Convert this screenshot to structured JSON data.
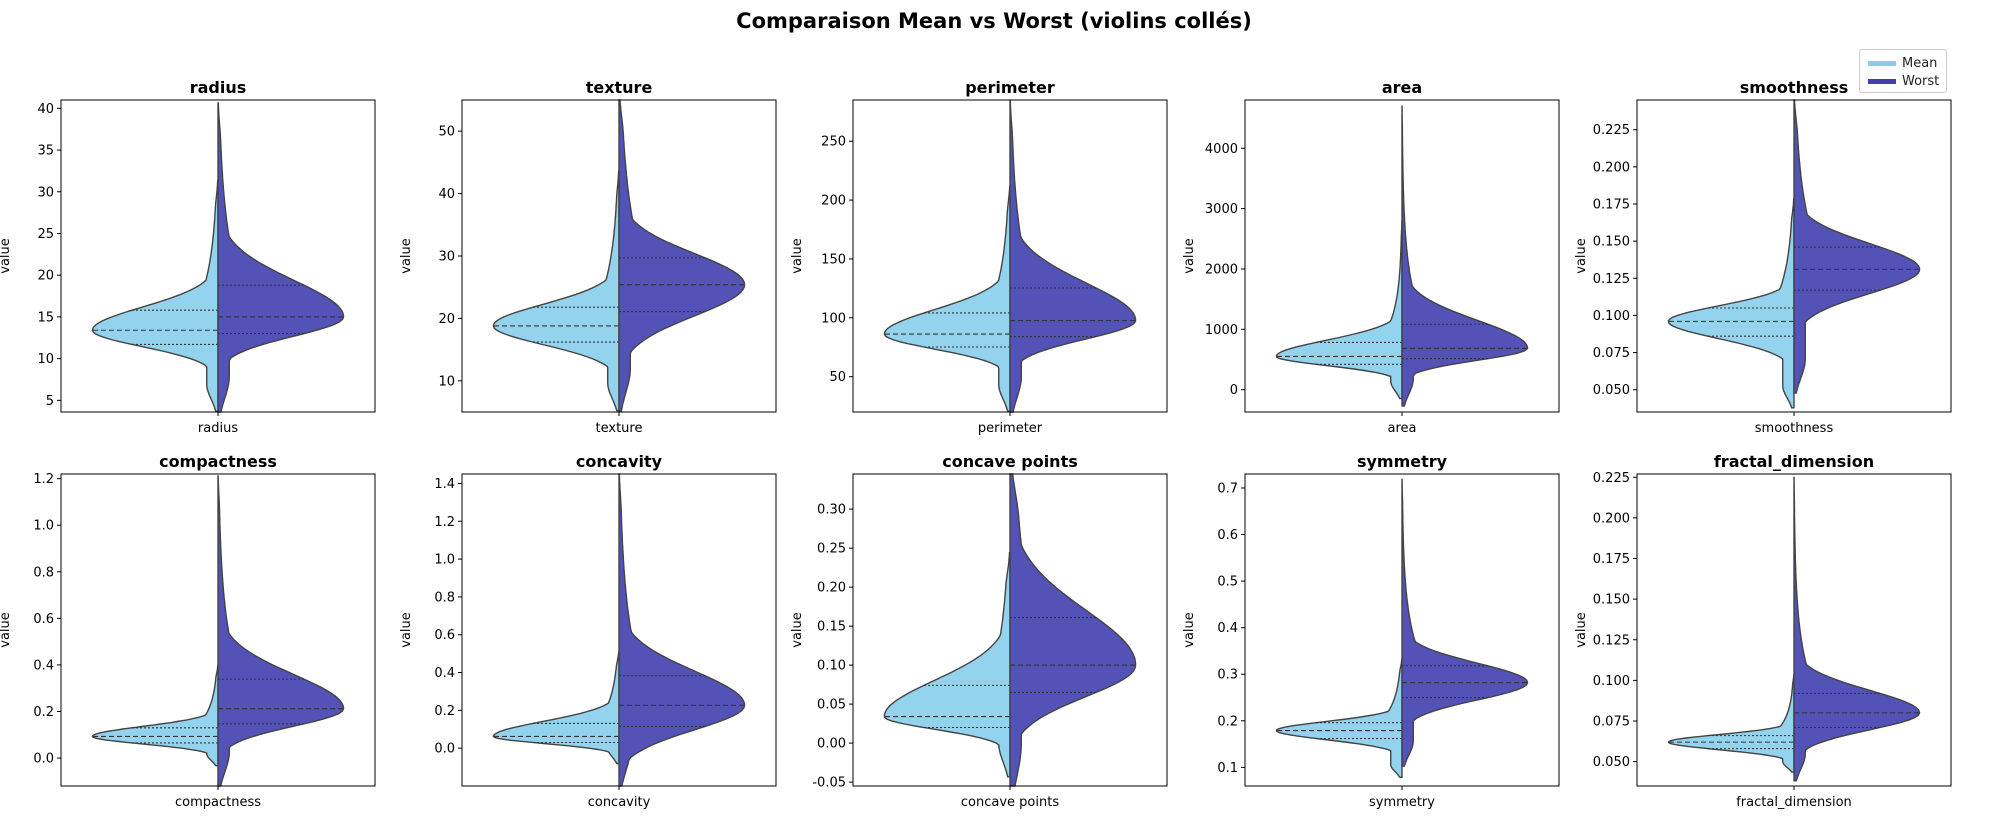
{
  "colors": {
    "mean": "#87CEEB",
    "worst": "#3F3FAF",
    "edge": "#444444",
    "quartile": "#333333"
  },
  "legend": {
    "mean_label": "Mean",
    "worst_label": "Worst"
  },
  "chart_data": {
    "type": "violin",
    "title": "Comparaison Mean vs Worst (violins collés)",
    "ylabel": "value",
    "legend_placement": "top-right",
    "grid": false,
    "panels": [
      {
        "name": "radius",
        "ylim": [
          3.6,
          41
        ],
        "yticks": [
          5,
          10,
          15,
          20,
          25,
          30,
          35,
          40
        ],
        "mean": {
          "range": [
            6.98,
            28.1
          ],
          "quartiles": [
            11.7,
            13.4,
            15.8
          ]
        },
        "worst": {
          "range": [
            7.9,
            36.0
          ],
          "quartiles": [
            13.0,
            15.0,
            18.8
          ]
        }
      },
      {
        "name": "texture",
        "ylim": [
          5,
          55
        ],
        "yticks": [
          10,
          20,
          30,
          40,
          50
        ],
        "mean": {
          "range": [
            9.7,
            39.3
          ],
          "quartiles": [
            16.2,
            18.8,
            21.8
          ]
        },
        "worst": {
          "range": [
            12.0,
            49.5
          ],
          "quartiles": [
            21.1,
            25.4,
            29.7
          ]
        }
      },
      {
        "name": "perimeter",
        "ylim": [
          20,
          285
        ],
        "yticks": [
          50,
          100,
          150,
          200,
          250
        ],
        "mean": {
          "range": [
            43.8,
            188.5
          ],
          "quartiles": [
            75.2,
            86.2,
            104.1
          ]
        },
        "worst": {
          "range": [
            50.4,
            251.2
          ],
          "quartiles": [
            84.1,
            97.7,
            125.4
          ]
        }
      },
      {
        "name": "area",
        "ylim": [
          -370,
          4800
        ],
        "yticks": [
          0,
          1000,
          2000,
          3000,
          4000
        ],
        "mean": {
          "range": [
            143,
            2501
          ],
          "quartiles": [
            420,
            551,
            783
          ]
        },
        "worst": {
          "range": [
            185,
            4254
          ],
          "quartiles": [
            515,
            686,
            1084
          ]
        }
      },
      {
        "name": "smoothness",
        "ylim": [
          0.035,
          0.245
        ],
        "yticks": [
          0.05,
          0.075,
          0.1,
          0.125,
          0.15,
          0.175,
          0.2,
          0.225
        ],
        "ytick_labels": [
          "0.050",
          "0.075",
          "0.100",
          "0.125",
          "0.150",
          "0.175",
          "0.200",
          "0.225"
        ],
        "mean": {
          "range": [
            0.053,
            0.163
          ],
          "quartiles": [
            0.086,
            0.096,
            0.105
          ]
        },
        "worst": {
          "range": [
            0.071,
            0.223
          ],
          "quartiles": [
            0.117,
            0.131,
            0.146
          ]
        }
      },
      {
        "name": "compactness",
        "ylim": [
          -0.12,
          1.22
        ],
        "yticks": [
          0.0,
          0.2,
          0.4,
          0.6,
          0.8,
          1.0,
          1.2
        ],
        "ytick_labels": [
          "0.0",
          "0.2",
          "0.4",
          "0.6",
          "0.8",
          "1.0",
          "1.2"
        ],
        "mean": {
          "range": [
            0.019,
            0.345
          ],
          "quartiles": [
            0.065,
            0.093,
            0.13
          ]
        },
        "worst": {
          "range": [
            0.027,
            1.058
          ],
          "quartiles": [
            0.147,
            0.212,
            0.339
          ]
        }
      },
      {
        "name": "concavity",
        "ylim": [
          -0.2,
          1.45
        ],
        "yticks": [
          0.0,
          0.2,
          0.4,
          0.6,
          0.8,
          1.0,
          1.2,
          1.4
        ],
        "ytick_labels": [
          "0.0",
          "0.2",
          "0.4",
          "0.6",
          "0.8",
          "1.0",
          "1.2",
          "1.4"
        ],
        "mean": {
          "range": [
            0.0,
            0.427
          ],
          "quartiles": [
            0.03,
            0.062,
            0.131
          ]
        },
        "worst": {
          "range": [
            0.0,
            1.252
          ],
          "quartiles": [
            0.115,
            0.227,
            0.383
          ]
        }
      },
      {
        "name": "concave points",
        "ylim": [
          -0.055,
          0.345
        ],
        "yticks": [
          -0.05,
          0.0,
          0.05,
          0.1,
          0.15,
          0.2,
          0.25,
          0.3
        ],
        "ytick_labels": [
          "-0.05",
          "0.00",
          "0.05",
          "0.10",
          "0.15",
          "0.20",
          "0.25",
          "0.30"
        ],
        "mean": {
          "range": [
            0.0,
            0.201
          ],
          "quartiles": [
            0.02,
            0.034,
            0.074
          ]
        },
        "worst": {
          "range": [
            0.0,
            0.291
          ],
          "quartiles": [
            0.065,
            0.1,
            0.161
          ]
        }
      },
      {
        "name": "symmetry",
        "ylim": [
          0.06,
          0.73
        ],
        "yticks": [
          0.1,
          0.2,
          0.3,
          0.4,
          0.5,
          0.6,
          0.7
        ],
        "ytick_labels": [
          "0.1",
          "0.2",
          "0.3",
          "0.4",
          "0.5",
          "0.6",
          "0.7"
        ],
        "mean": {
          "range": [
            0.106,
            0.304
          ],
          "quartiles": [
            0.162,
            0.179,
            0.196
          ]
        },
        "worst": {
          "range": [
            0.157,
            0.664
          ],
          "quartiles": [
            0.25,
            0.282,
            0.318
          ]
        }
      },
      {
        "name": "fractal_dimension",
        "ylim": [
          0.035,
          0.227
        ],
        "yticks": [
          0.05,
          0.075,
          0.1,
          0.125,
          0.15,
          0.175,
          0.2,
          0.225
        ],
        "ytick_labels": [
          "0.050",
          "0.075",
          "0.100",
          "0.125",
          "0.150",
          "0.175",
          "0.200",
          "0.225"
        ],
        "mean": {
          "range": [
            0.05,
            0.097
          ],
          "quartiles": [
            0.058,
            0.062,
            0.066
          ]
        },
        "worst": {
          "range": [
            0.055,
            0.208
          ],
          "quartiles": [
            0.071,
            0.08,
            0.092
          ]
        }
      }
    ]
  }
}
